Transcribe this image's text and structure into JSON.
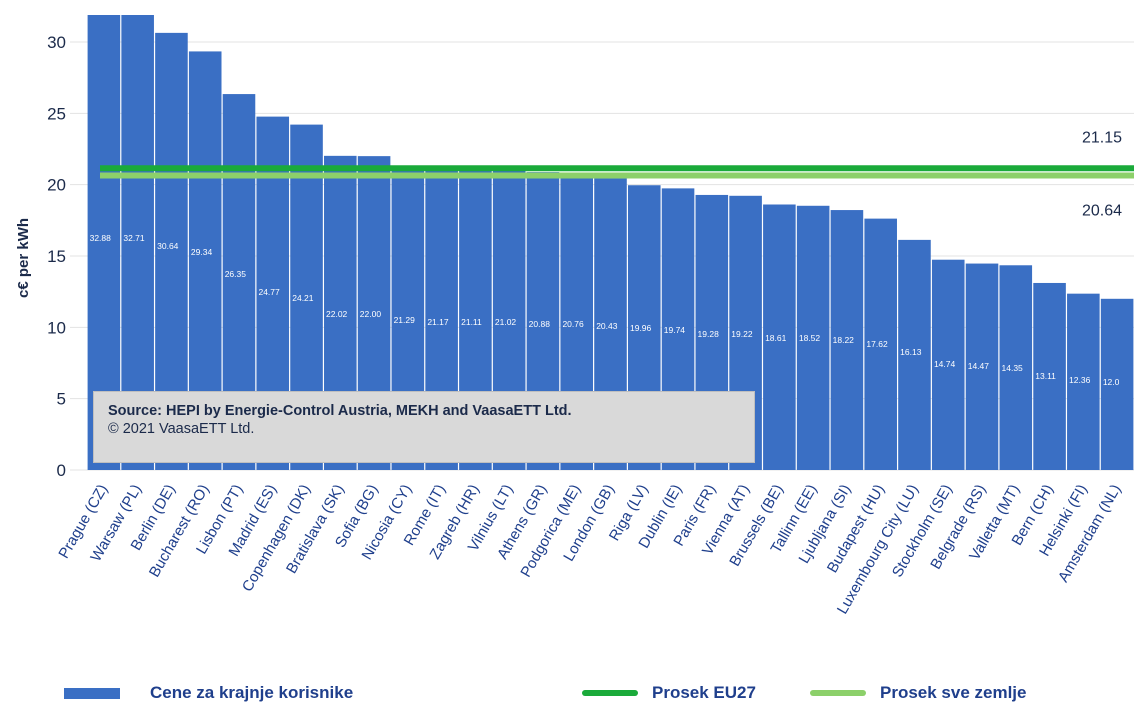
{
  "chart_data": {
    "type": "bar",
    "ylabel": "c€ per kWh",
    "ylim": [
      0,
      32
    ],
    "yticks": [
      0,
      5,
      10,
      15,
      20,
      25,
      30
    ],
    "grid": true,
    "categories": [
      "Prague (CZ)",
      "Warsaw (PL)",
      "Berlin (DE)",
      "Bucharest (RO)",
      "Lisbon (PT)",
      "Madrid (ES)",
      "Copenhagen (DK)",
      "Bratislava (SK)",
      "Sofia (BG)",
      "Nicosia (CY)",
      "Rome (IT)",
      "Zagreb (HR)",
      "Vilnius (LT)",
      "Athens (GR)",
      "Podgorica (ME)",
      "London (GB)",
      "Riga (LV)",
      "Dublin (IE)",
      "Paris (FR)",
      "Vienna (AT)",
      "Brussels (BE)",
      "Tallinn (EE)",
      "Ljubljana (SI)",
      "Budapest (HU)",
      "Luxembourg City (LU)",
      "Stockholm (SE)",
      "Belgrade (RS)",
      "Valletta (MT)",
      "Bern (CH)",
      "Helsinki (FI)",
      "Amsterdam (NL)"
    ],
    "values": [
      32.88,
      32.71,
      30.64,
      29.34,
      26.35,
      24.77,
      24.21,
      22.02,
      22.0,
      21.29,
      21.17,
      21.11,
      21.02,
      20.88,
      20.76,
      20.43,
      19.96,
      19.74,
      19.28,
      19.22,
      18.61,
      18.52,
      18.22,
      17.62,
      16.13,
      14.74,
      14.47,
      14.35,
      13.11,
      12.36,
      12.0
    ],
    "value_labels": [
      "32.88",
      "32.71",
      "30.64",
      "29.34",
      "26.35",
      "24.77",
      "24.21",
      "22.02",
      "22.00",
      "21.29",
      "21.17",
      "21.11",
      "21.02",
      "20.88",
      "20.76",
      "20.43",
      "19.96",
      "19.74",
      "19.28",
      "19.22",
      "18.61",
      "18.52",
      "18.22",
      "17.62",
      "16.13",
      "14.74",
      "14.47",
      "14.35",
      "13.11",
      "12.36",
      "12.0"
    ],
    "reference_lines": [
      {
        "name": "Prosek EU27",
        "value": 21.15,
        "label": "21.15",
        "color": "#1aaa3a"
      },
      {
        "name": "Prosek sve zemlje",
        "value": 20.64,
        "label": "20.64",
        "color": "#8cd06a"
      }
    ],
    "bar_color": "#3a6fc4",
    "legend": {
      "position": "bottom",
      "bars_label": "Cene za krajnje korisnike",
      "eu27_label": "Prosek EU27",
      "all_label": "Prosek sve zemlje"
    },
    "source": {
      "line1": "Source: HEPI by Energie-Control Austria, MEKH and VaasaETT Ltd.",
      "line2": "© 2021 VaasaETT Ltd."
    }
  }
}
